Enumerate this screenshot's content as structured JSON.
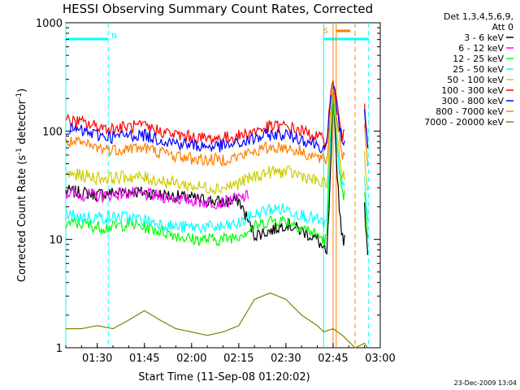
{
  "chart_data": {
    "type": "line",
    "title": "HESSI Observing Summary Count Rates, Corrected",
    "xlabel": "Start Time (11-Sep-08 01:20:02)",
    "ylabel_main": "Corrected Count Rate (s",
    "ylabel_sup1": "-1",
    "ylabel_mid": " detector",
    "ylabel_sup2": "-1",
    "ylabel_end": ")",
    "yscale": "log",
    "ylim": [
      1,
      1000
    ],
    "x_range_minutes": [
      1,
      2
    ],
    "xlim_minutes": [
      80,
      180
    ],
    "x_ticks": [
      {
        "t": 90,
        "label": "01:30"
      },
      {
        "t": 105,
        "label": "01:45"
      },
      {
        "t": 120,
        "label": "02:00"
      },
      {
        "t": 135,
        "label": "02:15"
      },
      {
        "t": 150,
        "label": "02:30"
      },
      {
        "t": 165,
        "label": "02:45"
      },
      {
        "t": 180,
        "label": "03:00"
      }
    ],
    "y_ticks": [
      {
        "v": 1,
        "label": "1"
      },
      {
        "v": 10,
        "label": "10"
      },
      {
        "v": 100,
        "label": "100"
      },
      {
        "v": 1000,
        "label": "1000"
      }
    ],
    "legend_header": [
      "Det 1,3,4,5,6,9,",
      "Att 0"
    ],
    "series": [
      {
        "name": "3 - 6 keV",
        "color": "#000000",
        "x": [
          80,
          85,
          90,
          95,
          100,
          105,
          110,
          115,
          120,
          125,
          130,
          135,
          140,
          145,
          150,
          155,
          160,
          162,
          163,
          164,
          165,
          166,
          167,
          168,
          169,
          170,
          171,
          172,
          173,
          174,
          175,
          176
        ],
        "y": [
          28,
          27,
          26,
          27,
          28,
          27,
          26,
          25,
          24,
          23,
          22,
          23,
          11,
          12,
          14,
          12,
          10,
          8,
          7,
          30,
          200,
          60,
          20,
          10,
          null,
          null,
          null,
          null,
          null,
          null,
          20,
          8
        ]
      },
      {
        "name": "6 - 12 keV",
        "color": "#ff00ff",
        "x": [
          80,
          85,
          90,
          95,
          100,
          105,
          110,
          115,
          120,
          125,
          130,
          135,
          138
        ],
        "y": [
          27,
          26,
          25,
          26,
          27,
          26,
          25,
          24,
          23,
          22,
          22,
          24,
          25
        ]
      },
      {
        "name": "12 - 25 keV",
        "color": "#00ff00",
        "x": [
          80,
          85,
          90,
          95,
          100,
          105,
          110,
          115,
          120,
          125,
          130,
          135,
          140,
          145,
          150,
          155,
          160,
          162,
          163,
          164,
          165,
          166,
          167,
          168,
          169,
          170,
          171,
          172,
          173,
          174,
          175,
          176
        ],
        "y": [
          14,
          14,
          13,
          13,
          14,
          13,
          12,
          11,
          10,
          10,
          10,
          11,
          13,
          15,
          15,
          13,
          11,
          10,
          10,
          60,
          250,
          90,
          40,
          25,
          null,
          null,
          null,
          null,
          null,
          null,
          30,
          10
        ]
      },
      {
        "name": "25 - 50 keV",
        "color": "#00ffff",
        "x": [
          80,
          85,
          90,
          95,
          100,
          105,
          110,
          115,
          120,
          125,
          130,
          135,
          140,
          145,
          150,
          155,
          160,
          162,
          163,
          164,
          165,
          166,
          167,
          168,
          169,
          170,
          171,
          172,
          173,
          174,
          175,
          176
        ],
        "y": [
          17,
          16,
          16,
          16,
          16,
          15,
          14,
          13,
          13,
          13,
          13,
          14,
          17,
          19,
          19,
          17,
          15,
          14,
          14,
          70,
          260,
          100,
          45,
          30,
          null,
          null,
          null,
          null,
          null,
          null,
          40,
          14
        ]
      },
      {
        "name": "50 - 100 keV",
        "color": "#cccc00",
        "x": [
          80,
          85,
          90,
          95,
          100,
          105,
          110,
          115,
          120,
          125,
          130,
          135,
          140,
          145,
          150,
          155,
          160,
          162,
          163,
          164,
          165,
          166,
          167,
          168,
          169,
          170,
          171,
          172,
          173,
          174,
          175,
          176
        ],
        "y": [
          40,
          39,
          37,
          37,
          38,
          37,
          35,
          33,
          31,
          30,
          30,
          33,
          38,
          42,
          42,
          39,
          34,
          32,
          32,
          90,
          270,
          120,
          60,
          40,
          null,
          null,
          null,
          null,
          null,
          null,
          60,
          30
        ]
      },
      {
        "name": "100 - 300 keV",
        "color": "#ff0000",
        "x": [
          80,
          85,
          90,
          95,
          100,
          105,
          110,
          115,
          120,
          125,
          130,
          135,
          140,
          145,
          150,
          155,
          160,
          162,
          163,
          164,
          165,
          166,
          167,
          168,
          169,
          170,
          171,
          172,
          173,
          174,
          175,
          176
        ],
        "y": [
          125,
          120,
          110,
          105,
          110,
          110,
          100,
          92,
          88,
          85,
          86,
          90,
          100,
          110,
          110,
          100,
          88,
          82,
          82,
          180,
          300,
          200,
          120,
          90,
          null,
          null,
          null,
          null,
          null,
          null,
          180,
          80
        ]
      },
      {
        "name": "300 - 800 keV",
        "color": "#0000ff",
        "x": [
          80,
          85,
          90,
          95,
          100,
          105,
          110,
          115,
          120,
          125,
          130,
          135,
          140,
          145,
          150,
          155,
          160,
          162,
          163,
          164,
          165,
          166,
          167,
          168,
          169,
          170,
          171,
          172,
          173,
          174,
          175,
          176
        ],
        "y": [
          105,
          100,
          92,
          88,
          92,
          92,
          84,
          78,
          74,
          72,
          73,
          76,
          85,
          93,
          93,
          85,
          75,
          70,
          70,
          160,
          280,
          180,
          110,
          80,
          null,
          null,
          null,
          null,
          null,
          null,
          160,
          65
        ]
      },
      {
        "name": "800 - 7000 keV",
        "color": "#ff8000",
        "x": [
          80,
          85,
          90,
          95,
          100,
          105,
          110,
          115,
          120,
          125,
          130,
          135,
          140,
          145,
          150,
          155,
          160,
          162,
          163,
          164,
          165,
          166,
          167,
          168,
          169,
          170,
          171,
          172,
          173,
          174,
          175,
          176
        ],
        "y": [
          80,
          76,
          70,
          67,
          70,
          70,
          64,
          59,
          56,
          54,
          55,
          58,
          65,
          71,
          71,
          64,
          57,
          53,
          53,
          130,
          260,
          150,
          90,
          60,
          null,
          null,
          null,
          null,
          null,
          null,
          120,
          50
        ]
      },
      {
        "name": "7000 - 20000 keV",
        "color": "#808000",
        "x": [
          80,
          85,
          90,
          95,
          100,
          105,
          110,
          115,
          120,
          125,
          130,
          135,
          140,
          145,
          150,
          155,
          160,
          162,
          165,
          168,
          172,
          175,
          176
        ],
        "y": [
          1.5,
          1.5,
          1.6,
          1.5,
          1.8,
          2.2,
          1.8,
          1.5,
          1.4,
          1.3,
          1.4,
          1.6,
          2.8,
          3.2,
          2.8,
          2.0,
          1.6,
          1.4,
          1.5,
          1.3,
          1.0,
          1.1,
          1.0
        ]
      }
    ],
    "annotations": {
      "night_label": "N",
      "saa_label": "S",
      "night_start_t": 80,
      "night_end_t": 93.5,
      "saa_start_t": 162,
      "saa_end_t": 176.3,
      "flare_start_t": 166.0,
      "flare_end_t": 172.0,
      "flare_lines_t": [
        165.0,
        166.0,
        172.0
      ]
    },
    "footer_date": "23-Dec-2009 13:04"
  }
}
